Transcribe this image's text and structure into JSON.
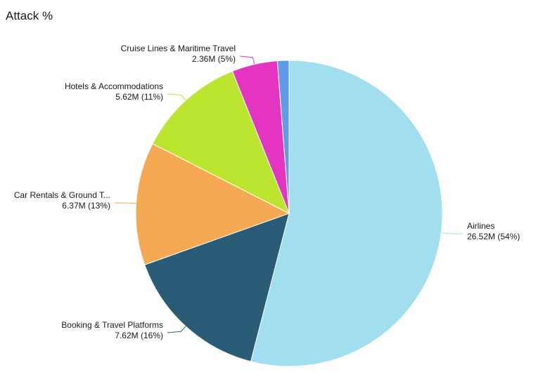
{
  "chart_data": {
    "type": "pie",
    "title": "Attack %",
    "start_angle_deg": 0,
    "direction": "clockwise",
    "slices": [
      {
        "name": "Airlines",
        "display_name": "Airlines",
        "value": 26.52,
        "value_label": "26.52M (54%)",
        "color": "#a1deef"
      },
      {
        "name": "Booking & Travel Platforms",
        "display_name": "Booking & Travel Platforms",
        "value": 7.62,
        "value_label": "7.62M (16%)",
        "color": "#2a5c78"
      },
      {
        "name": "Car Rentals & Ground Transportation",
        "display_name": "Car Rentals & Ground T...",
        "value": 6.37,
        "value_label": "6.37M (13%)",
        "color": "#f5a952"
      },
      {
        "name": "Hotels & Accommodations",
        "display_name": "Hotels & Accommodations",
        "value": 5.62,
        "value_label": "5.62M (11%)",
        "color": "#bbe52f"
      },
      {
        "name": "Cruise Lines & Maritime Travel",
        "display_name": "Cruise Lines & Maritime Travel",
        "value": 2.36,
        "value_label": "2.36M (5%)",
        "color": "#e335c1"
      },
      {
        "name": "",
        "display_name": "",
        "value": 0.6,
        "value_label": "",
        "color": "#5e9de6"
      }
    ]
  }
}
